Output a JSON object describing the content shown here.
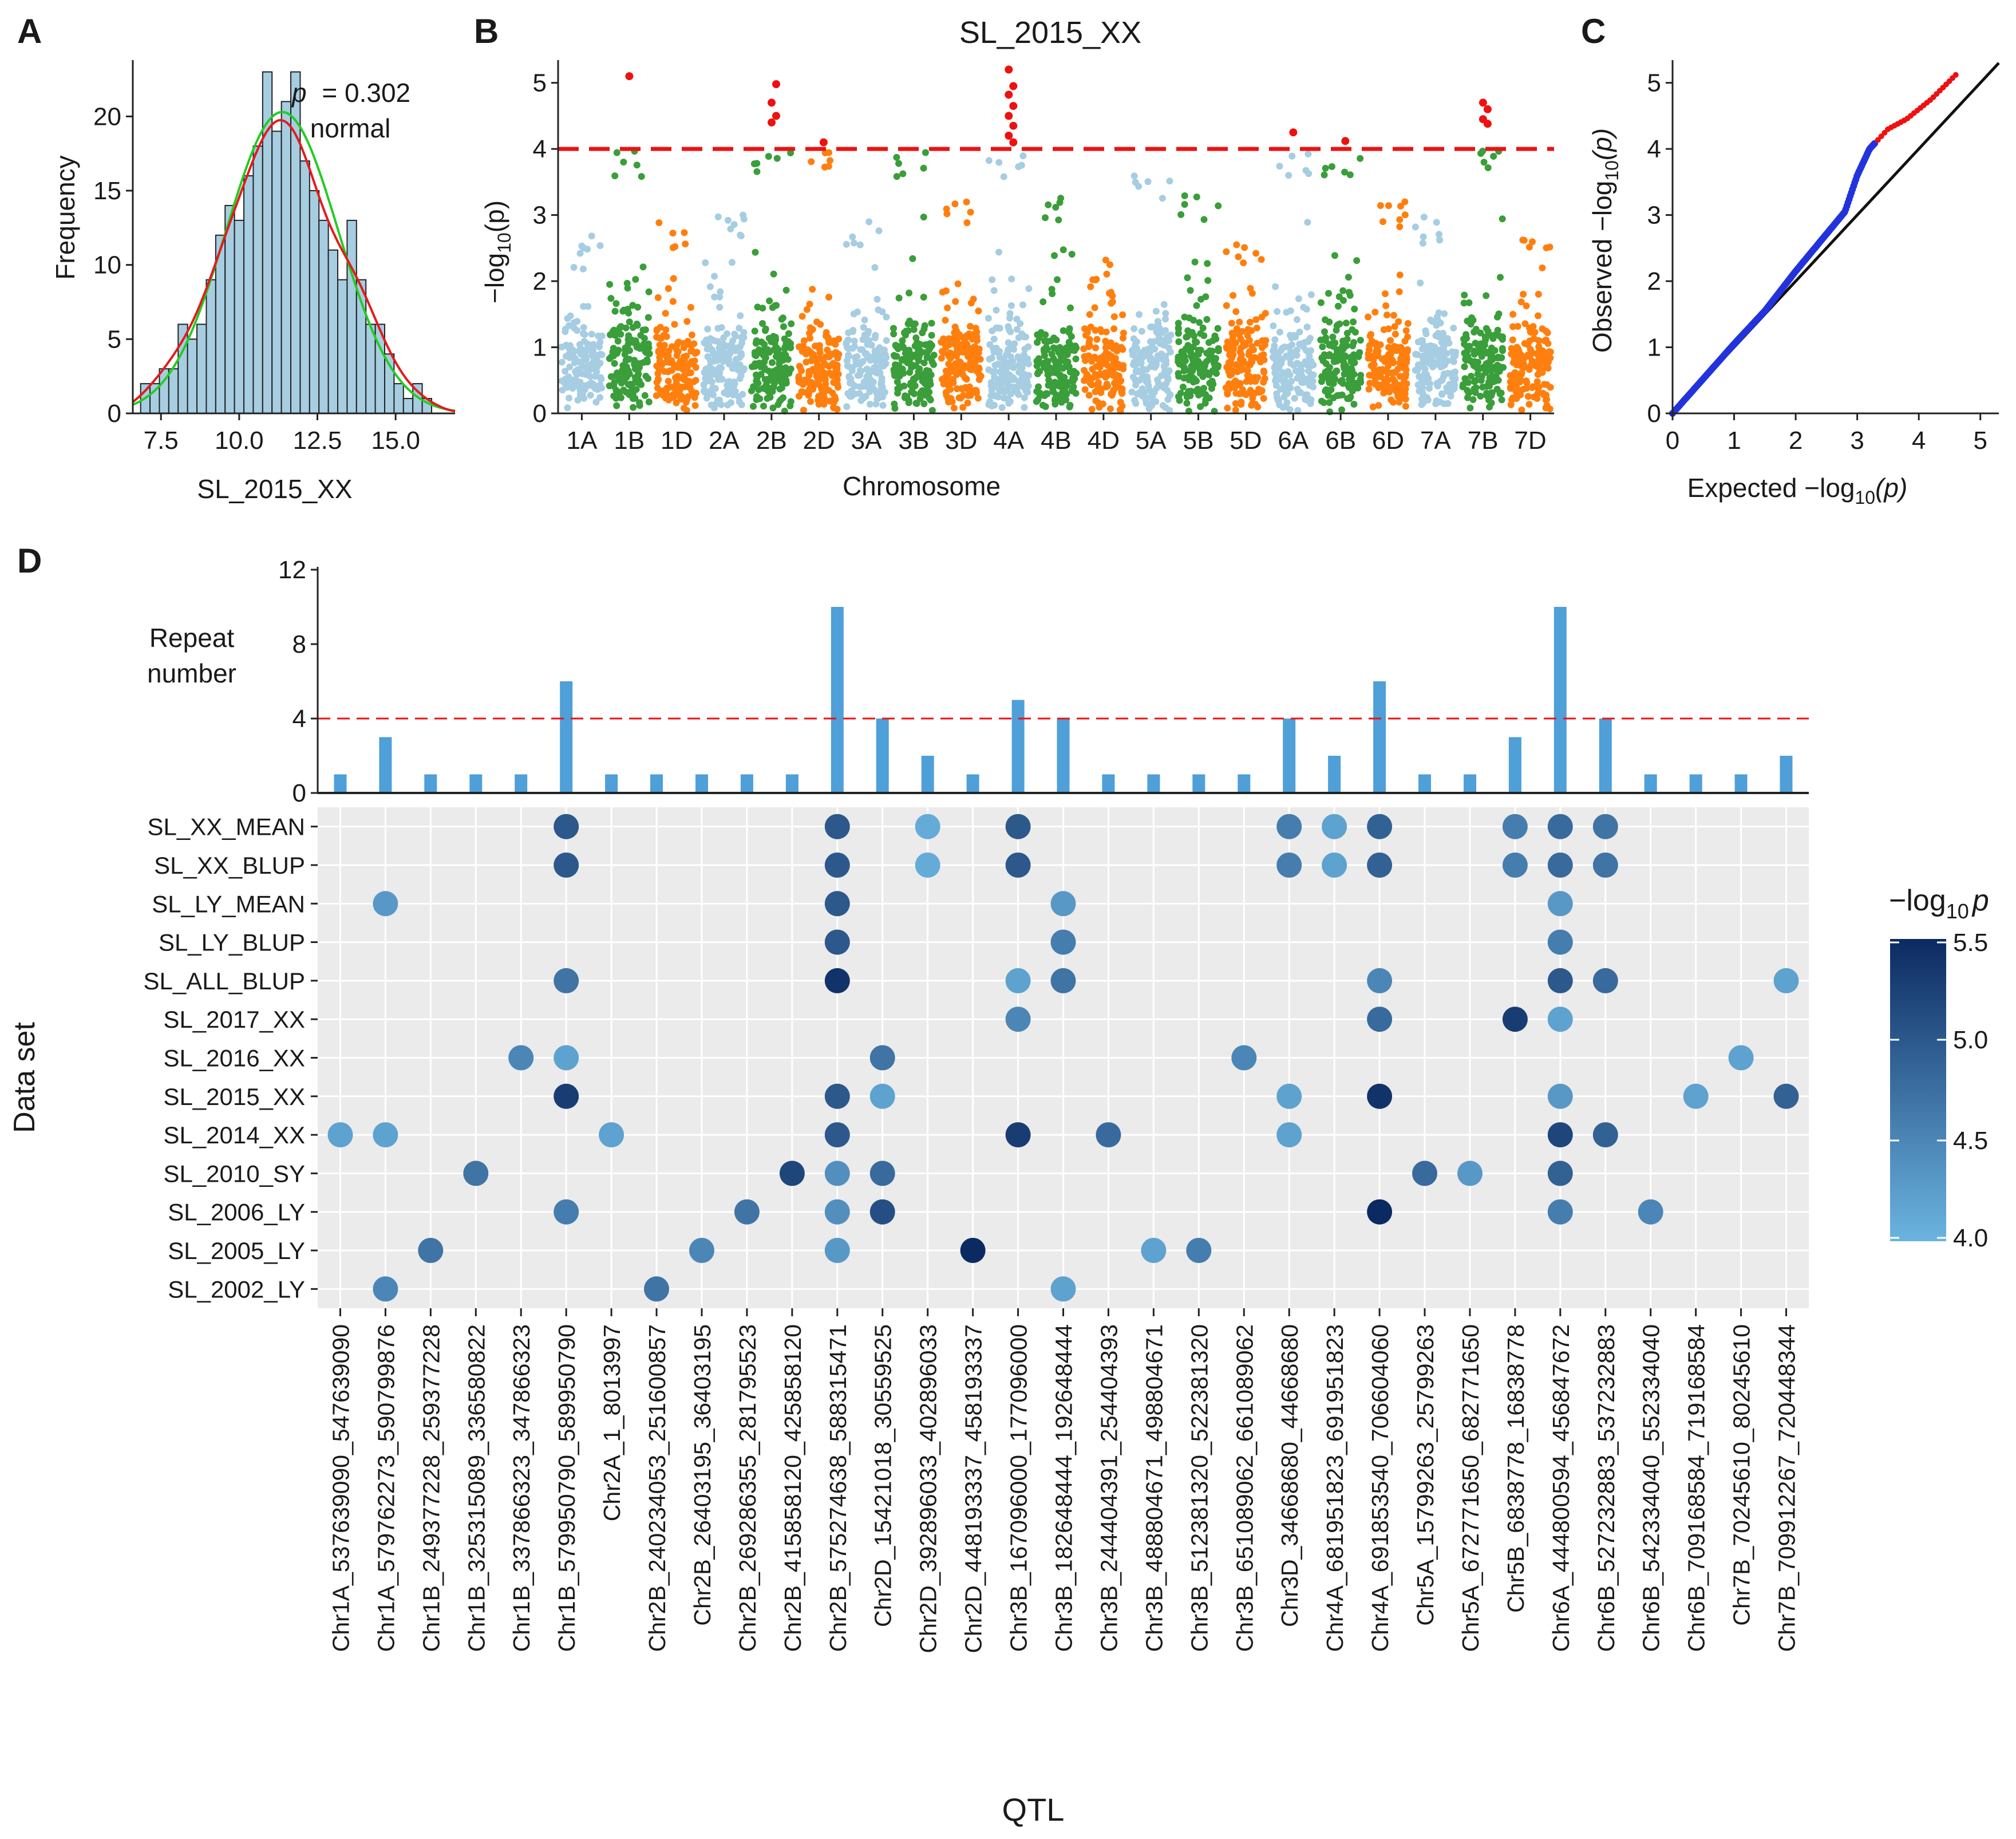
{
  "panel_labels": {
    "a": "A",
    "b": "B",
    "c": "C",
    "d": "D"
  },
  "chart_data": [
    {
      "id": "A",
      "type": "bar",
      "subtype": "histogram",
      "xlabel": "SL_2015_XX",
      "ylabel": "Frequency",
      "xlim": [
        6.6,
        16.9
      ],
      "ylim": [
        0,
        23.6
      ],
      "xticks": [
        "7.5",
        "10.0",
        "12.5",
        "15.0"
      ],
      "yticks": [
        "0",
        "5",
        "10",
        "15",
        "20"
      ],
      "bin_start": 6.85,
      "bin_width": 0.3,
      "values": [
        2,
        2,
        3,
        3,
        6,
        5,
        6,
        9,
        12,
        14,
        13,
        16,
        18,
        23,
        19,
        21,
        23,
        17,
        15,
        13,
        11,
        9,
        13,
        9,
        6,
        6,
        4,
        2,
        1,
        2,
        1
      ],
      "annotation": {
        "p_label": "p",
        "p_value": "= 0.302",
        "status": "normal"
      },
      "curves": [
        {
          "name": "density",
          "color": "#e41a1c"
        },
        {
          "name": "normal fit",
          "color": "#22cc22"
        }
      ]
    },
    {
      "id": "B",
      "type": "scatter",
      "subtype": "manhattan",
      "title": "SL_2015_XX",
      "xlabel": "Chromosome",
      "ylabel_prefix": "−log",
      "ylabel_sub": "10",
      "ylabel_suffix": "(p)",
      "ylim": [
        0,
        5.3
      ],
      "yticks": [
        "0",
        "1",
        "2",
        "3",
        "4",
        "5"
      ],
      "threshold": 4.0,
      "chromosomes": [
        "1A",
        "1B",
        "1D",
        "2A",
        "2B",
        "2D",
        "3A",
        "3B",
        "3D",
        "4A",
        "4B",
        "4D",
        "5A",
        "5B",
        "5D",
        "6A",
        "6B",
        "6D",
        "7A",
        "7B",
        "7D"
      ],
      "colors": [
        "#a6cde2",
        "#3a9e3a",
        "#ff7f0e"
      ],
      "significant_color": "#ee1111",
      "chrom_max": [
        2.7,
        5.1,
        2.9,
        3.0,
        5.0,
        4.1,
        2.9,
        4.0,
        3.2,
        5.2,
        3.3,
        2.4,
        3.6,
        3.3,
        2.6,
        4.25,
        4.15,
        3.2,
        3.0,
        4.7,
        2.8
      ],
      "significant_points": [
        {
          "chr": "1B",
          "y": 5.1
        },
        {
          "chr": "2B",
          "y": 4.98
        },
        {
          "chr": "2B",
          "y": 4.7
        },
        {
          "chr": "2B",
          "y": 4.5
        },
        {
          "chr": "2B",
          "y": 4.4
        },
        {
          "chr": "2D",
          "y": 4.1
        },
        {
          "chr": "4A",
          "y": 5.2
        },
        {
          "chr": "4A",
          "y": 4.95
        },
        {
          "chr": "4A",
          "y": 4.82
        },
        {
          "chr": "4A",
          "y": 4.65
        },
        {
          "chr": "4A",
          "y": 4.5
        },
        {
          "chr": "4A",
          "y": 4.35
        },
        {
          "chr": "4A",
          "y": 4.2
        },
        {
          "chr": "4A",
          "y": 4.1
        },
        {
          "chr": "6A",
          "y": 4.25
        },
        {
          "chr": "6B",
          "y": 4.12
        },
        {
          "chr": "7B",
          "y": 4.7
        },
        {
          "chr": "7B",
          "y": 4.6
        },
        {
          "chr": "7B",
          "y": 4.45
        },
        {
          "chr": "7B",
          "y": 4.38
        }
      ]
    },
    {
      "id": "C",
      "type": "scatter",
      "subtype": "qq",
      "xlabel_prefix": "Expected  −log",
      "xlabel_sub": "10",
      "xlabel_suffix": "(p)",
      "ylabel_prefix": "Observed  −log",
      "ylabel_sub": "10",
      "ylabel_suffix": "(p)",
      "xlim": [
        0,
        5.3
      ],
      "ylim": [
        0,
        5.3
      ],
      "xticks": [
        "0",
        "1",
        "2",
        "3",
        "4",
        "5"
      ],
      "yticks": [
        "0",
        "1",
        "2",
        "3",
        "4",
        "5"
      ],
      "curve": [
        [
          0,
          0
        ],
        [
          1,
          1.05
        ],
        [
          1.5,
          1.55
        ],
        [
          2,
          2.15
        ],
        [
          2.4,
          2.6
        ],
        [
          2.8,
          3.05
        ],
        [
          3.0,
          3.6
        ],
        [
          3.2,
          4.0
        ],
        [
          3.5,
          4.3
        ],
        [
          3.8,
          4.45
        ],
        [
          4.2,
          4.75
        ],
        [
          4.6,
          5.12
        ]
      ],
      "significant_from_x": 3.3,
      "colors": {
        "main": "#2233dd",
        "significant": "#ee1111",
        "diagonal": "#111111"
      }
    },
    {
      "id": "D-bars",
      "type": "bar",
      "ylabel_line1": "Repeat",
      "ylabel_line2": "number",
      "ylim": [
        0,
        12
      ],
      "yticks": [
        "0",
        "4",
        "8",
        "12"
      ],
      "threshold": 4,
      "categories_ref": "D-dots",
      "values": [
        1,
        3,
        1,
        1,
        1,
        6,
        1,
        1,
        1,
        1,
        1,
        10,
        4,
        2,
        1,
        5,
        4,
        1,
        1,
        1,
        1,
        4,
        2,
        6,
        1,
        1,
        3,
        10,
        4,
        1,
        1,
        1,
        2
      ],
      "bar_color": "#4f9fd9"
    },
    {
      "id": "D-dots",
      "type": "scatter",
      "subtype": "dot-matrix",
      "xlabel": "QTL",
      "ylabel": "Data set",
      "qtl": [
        "Chr1A_537639090_547639090",
        "Chr1A_579762273_590799876",
        "Chr1B_249377228_259377228",
        "Chr1B_325315089_336580822",
        "Chr1B_337866323_347866323",
        "Chr1B_579950790_589950790",
        "Chr2A_1_8013997",
        "Chr2B_240234053_251600857",
        "Chr2B_26403195_36403195",
        "Chr2B_269286355_281795523",
        "Chr2B_415858120_425858120",
        "Chr2B_575274638_588315471",
        "Chr2D_15421018_30559525",
        "Chr2D_392896033_402896033",
        "Chr2D_448193337_458193337",
        "Chr3B_167096000_177096000",
        "Chr3B_182648444_192648444",
        "Chr3B_244404391_254404393",
        "Chr3B_488804671_498804671",
        "Chr3B_512381320_522381320",
        "Chr3B_651089062_661089062",
        "Chr3D_34668680_44668680",
        "Chr4A_681951823_691951823",
        "Chr4A_691853540_706604060",
        "Chr5A_15799263_25799263",
        "Chr5A_672771650_682771650",
        "Chr5B_6838778_16838778",
        "Chr6A_444800594_456847672",
        "Chr6B_527232883_537232883",
        "Chr6B_542334040_552334040",
        "Chr6B_709168584_719168584",
        "Chr7B_70245610_80245610",
        "Chr7B_709912267_720448344"
      ],
      "datasets": [
        "SL_XX_MEAN",
        "SL_XX_BLUP",
        "SL_LY_MEAN",
        "SL_LY_BLUP",
        "SL_ALL_BLUP",
        "SL_2017_XX",
        "SL_2016_XX",
        "SL_2015_XX",
        "SL_2014_XX",
        "SL_2010_SY",
        "SL_2006_LY",
        "SL_2005_LY",
        "SL_2002_LY"
      ],
      "points": [
        [
          5,
          0,
          5.0
        ],
        [
          11,
          0,
          5.0
        ],
        [
          13,
          0,
          4.1
        ],
        [
          15,
          0,
          5.0
        ],
        [
          21,
          0,
          4.6
        ],
        [
          22,
          0,
          4.2
        ],
        [
          23,
          0,
          4.9
        ],
        [
          26,
          0,
          4.6
        ],
        [
          27,
          0,
          4.8
        ],
        [
          28,
          0,
          4.7
        ],
        [
          5,
          1,
          5.0
        ],
        [
          11,
          1,
          5.0
        ],
        [
          13,
          1,
          4.1
        ],
        [
          15,
          1,
          5.0
        ],
        [
          21,
          1,
          4.6
        ],
        [
          22,
          1,
          4.2
        ],
        [
          23,
          1,
          4.9
        ],
        [
          26,
          1,
          4.6
        ],
        [
          27,
          1,
          4.8
        ],
        [
          28,
          1,
          4.7
        ],
        [
          1,
          2,
          4.3
        ],
        [
          11,
          2,
          5.0
        ],
        [
          16,
          2,
          4.3
        ],
        [
          27,
          2,
          4.3
        ],
        [
          11,
          3,
          5.0
        ],
        [
          16,
          3,
          4.6
        ],
        [
          27,
          3,
          4.6
        ],
        [
          5,
          4,
          4.7
        ],
        [
          11,
          4,
          5.4
        ],
        [
          15,
          4,
          4.2
        ],
        [
          16,
          4,
          4.7
        ],
        [
          23,
          4,
          4.5
        ],
        [
          27,
          4,
          5.0
        ],
        [
          28,
          4,
          4.8
        ],
        [
          32,
          4,
          4.2
        ],
        [
          15,
          5,
          4.5
        ],
        [
          23,
          5,
          4.8
        ],
        [
          26,
          5,
          5.3
        ],
        [
          27,
          5,
          4.2
        ],
        [
          4,
          6,
          4.5
        ],
        [
          5,
          6,
          4.2
        ],
        [
          12,
          6,
          4.7
        ],
        [
          20,
          6,
          4.5
        ],
        [
          31,
          6,
          4.2
        ],
        [
          5,
          7,
          5.3
        ],
        [
          11,
          7,
          5.0
        ],
        [
          12,
          7,
          4.2
        ],
        [
          21,
          7,
          4.2
        ],
        [
          23,
          7,
          5.4
        ],
        [
          27,
          7,
          4.3
        ],
        [
          30,
          7,
          4.2
        ],
        [
          32,
          7,
          4.9
        ],
        [
          0,
          8,
          4.2
        ],
        [
          1,
          8,
          4.2
        ],
        [
          6,
          8,
          4.2
        ],
        [
          11,
          8,
          5.0
        ],
        [
          15,
          8,
          5.3
        ],
        [
          17,
          8,
          4.8
        ],
        [
          21,
          8,
          4.2
        ],
        [
          27,
          8,
          5.2
        ],
        [
          28,
          8,
          4.9
        ],
        [
          3,
          9,
          4.7
        ],
        [
          10,
          9,
          5.2
        ],
        [
          11,
          9,
          4.4
        ],
        [
          12,
          9,
          4.8
        ],
        [
          24,
          9,
          4.8
        ],
        [
          25,
          9,
          4.3
        ],
        [
          27,
          9,
          4.9
        ],
        [
          5,
          10,
          4.6
        ],
        [
          9,
          10,
          4.7
        ],
        [
          11,
          10,
          4.4
        ],
        [
          12,
          10,
          5.1
        ],
        [
          23,
          10,
          5.5
        ],
        [
          27,
          10,
          4.6
        ],
        [
          29,
          10,
          4.5
        ],
        [
          2,
          11,
          4.7
        ],
        [
          8,
          11,
          4.5
        ],
        [
          11,
          11,
          4.3
        ],
        [
          14,
          11,
          5.6
        ],
        [
          18,
          11,
          4.2
        ],
        [
          19,
          11,
          4.6
        ],
        [
          1,
          12,
          4.5
        ],
        [
          7,
          12,
          4.7
        ],
        [
          16,
          12,
          4.2
        ]
      ],
      "legend": {
        "title_prefix": "−log",
        "title_sub": "10",
        "title_suffix": "p",
        "range": [
          4.0,
          5.5
        ],
        "ticks": [
          "4.0",
          "4.5",
          "5.0",
          "5.5"
        ],
        "low_color": "#6bb4e0",
        "high_color": "#0c2a62"
      }
    }
  ]
}
